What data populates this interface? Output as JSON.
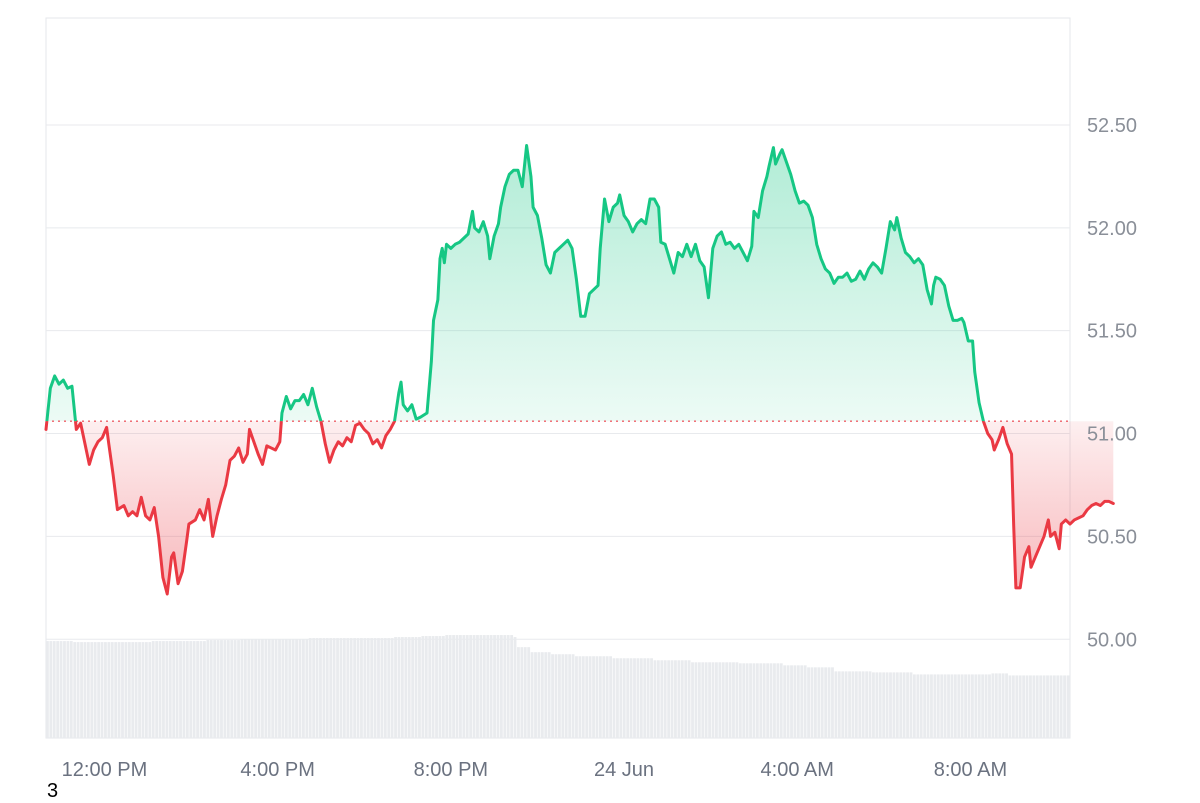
{
  "chart_data": {
    "type": "area",
    "baseline": 51.06,
    "ylim": [
      49.52,
      53.02
    ],
    "yticks": [
      "50.00",
      "50.50",
      "51.00",
      "51.50",
      "52.00",
      "52.50"
    ],
    "ytick_values": [
      50.0,
      50.5,
      51.0,
      51.5,
      52.0,
      52.5
    ],
    "xlim": [
      10.65,
      34.3
    ],
    "xticks": [
      {
        "label": "12:00 PM",
        "x": 12
      },
      {
        "label": "4:00 PM",
        "x": 16
      },
      {
        "label": "8:00 PM",
        "x": 20
      },
      {
        "label": "24 Jun",
        "x": 24
      },
      {
        "label": "4:00 AM",
        "x": 28
      },
      {
        "label": "8:00 AM",
        "x": 32
      }
    ],
    "xticks_unit": "hours since 00:00 on the first day",
    "series": [
      {
        "values": [
          [
            10.65,
            51.02
          ],
          [
            10.75,
            51.22
          ],
          [
            10.85,
            51.28
          ],
          [
            10.95,
            51.24
          ],
          [
            11.05,
            51.26
          ],
          [
            11.15,
            51.22
          ],
          [
            11.25,
            51.23
          ],
          [
            11.35,
            51.02
          ],
          [
            11.45,
            51.05
          ],
          [
            11.55,
            50.95
          ],
          [
            11.65,
            50.85
          ],
          [
            11.75,
            50.92
          ],
          [
            11.85,
            50.96
          ],
          [
            11.95,
            50.98
          ],
          [
            12.05,
            51.03
          ],
          [
            12.1,
            50.95
          ],
          [
            12.2,
            50.8
          ],
          [
            12.3,
            50.63
          ],
          [
            12.45,
            50.65
          ],
          [
            12.55,
            50.6
          ],
          [
            12.65,
            50.62
          ],
          [
            12.75,
            50.6
          ],
          [
            12.85,
            50.69
          ],
          [
            12.95,
            50.6
          ],
          [
            13.05,
            50.58
          ],
          [
            13.15,
            50.64
          ],
          [
            13.25,
            50.5
          ],
          [
            13.35,
            50.3
          ],
          [
            13.45,
            50.22
          ],
          [
            13.55,
            50.4
          ],
          [
            13.6,
            50.42
          ],
          [
            13.7,
            50.27
          ],
          [
            13.8,
            50.33
          ],
          [
            13.9,
            50.48
          ],
          [
            13.95,
            50.56
          ],
          [
            14.1,
            50.58
          ],
          [
            14.2,
            50.63
          ],
          [
            14.3,
            50.58
          ],
          [
            14.4,
            50.68
          ],
          [
            14.5,
            50.5
          ],
          [
            14.6,
            50.6
          ],
          [
            14.7,
            50.68
          ],
          [
            14.8,
            50.75
          ],
          [
            14.9,
            50.87
          ],
          [
            15.0,
            50.89
          ],
          [
            15.1,
            50.93
          ],
          [
            15.2,
            50.86
          ],
          [
            15.3,
            50.9
          ],
          [
            15.35,
            51.02
          ],
          [
            15.45,
            50.96
          ],
          [
            15.55,
            50.9
          ],
          [
            15.65,
            50.85
          ],
          [
            15.75,
            50.94
          ],
          [
            15.85,
            50.93
          ],
          [
            15.95,
            50.92
          ],
          [
            16.05,
            50.96
          ],
          [
            16.1,
            51.1
          ],
          [
            16.2,
            51.18
          ],
          [
            16.3,
            51.12
          ],
          [
            16.4,
            51.16
          ],
          [
            16.5,
            51.16
          ],
          [
            16.6,
            51.19
          ],
          [
            16.7,
            51.14
          ],
          [
            16.8,
            51.22
          ],
          [
            16.9,
            51.13
          ],
          [
            17.0,
            51.06
          ],
          [
            17.1,
            50.95
          ],
          [
            17.2,
            50.86
          ],
          [
            17.3,
            50.92
          ],
          [
            17.4,
            50.96
          ],
          [
            17.5,
            50.94
          ],
          [
            17.6,
            50.98
          ],
          [
            17.7,
            50.96
          ],
          [
            17.8,
            51.04
          ],
          [
            17.9,
            51.05
          ],
          [
            18.0,
            51.02
          ],
          [
            18.1,
            51.0
          ],
          [
            18.2,
            50.95
          ],
          [
            18.3,
            50.97
          ],
          [
            18.4,
            50.93
          ],
          [
            18.5,
            50.99
          ],
          [
            18.6,
            51.02
          ],
          [
            18.7,
            51.06
          ],
          [
            18.8,
            51.2
          ],
          [
            18.85,
            51.25
          ],
          [
            18.9,
            51.14
          ],
          [
            19.0,
            51.11
          ],
          [
            19.1,
            51.14
          ],
          [
            19.2,
            51.07
          ],
          [
            19.3,
            51.08
          ],
          [
            19.45,
            51.1
          ],
          [
            19.55,
            51.35
          ],
          [
            19.6,
            51.55
          ],
          [
            19.7,
            51.65
          ],
          [
            19.75,
            51.85
          ],
          [
            19.8,
            51.9
          ],
          [
            19.85,
            51.83
          ],
          [
            19.9,
            51.92
          ],
          [
            20.0,
            51.9
          ],
          [
            20.1,
            51.92
          ],
          [
            20.2,
            51.93
          ],
          [
            20.3,
            51.95
          ],
          [
            20.4,
            51.97
          ],
          [
            20.5,
            52.08
          ],
          [
            20.55,
            52.0
          ],
          [
            20.65,
            51.98
          ],
          [
            20.75,
            52.03
          ],
          [
            20.85,
            51.96
          ],
          [
            20.9,
            51.85
          ],
          [
            21.0,
            51.96
          ],
          [
            21.1,
            52.02
          ],
          [
            21.15,
            52.1
          ],
          [
            21.25,
            52.2
          ],
          [
            21.35,
            52.26
          ],
          [
            21.45,
            52.28
          ],
          [
            21.55,
            52.28
          ],
          [
            21.65,
            52.2
          ],
          [
            21.7,
            52.3
          ],
          [
            21.75,
            52.4
          ],
          [
            21.85,
            52.25
          ],
          [
            21.9,
            52.1
          ],
          [
            22.0,
            52.06
          ],
          [
            22.1,
            51.95
          ],
          [
            22.2,
            51.82
          ],
          [
            22.3,
            51.78
          ],
          [
            22.4,
            51.88
          ],
          [
            22.5,
            51.9
          ],
          [
            22.6,
            51.92
          ],
          [
            22.7,
            51.94
          ],
          [
            22.8,
            51.9
          ],
          [
            22.9,
            51.75
          ],
          [
            23.0,
            51.57
          ],
          [
            23.1,
            51.57
          ],
          [
            23.2,
            51.68
          ],
          [
            23.3,
            51.7
          ],
          [
            23.4,
            51.72
          ],
          [
            23.45,
            51.9
          ],
          [
            23.55,
            52.14
          ],
          [
            23.65,
            52.03
          ],
          [
            23.75,
            52.1
          ],
          [
            23.85,
            52.12
          ],
          [
            23.9,
            52.16
          ],
          [
            24.0,
            52.06
          ],
          [
            24.1,
            52.03
          ],
          [
            24.2,
            51.98
          ],
          [
            24.3,
            52.02
          ],
          [
            24.4,
            52.04
          ],
          [
            24.5,
            52.02
          ],
          [
            24.6,
            52.14
          ],
          [
            24.7,
            52.14
          ],
          [
            24.8,
            52.1
          ],
          [
            24.85,
            51.93
          ],
          [
            24.95,
            51.92
          ],
          [
            25.05,
            51.85
          ],
          [
            25.15,
            51.78
          ],
          [
            25.25,
            51.88
          ],
          [
            25.35,
            51.86
          ],
          [
            25.45,
            51.92
          ],
          [
            25.55,
            51.86
          ],
          [
            25.65,
            51.92
          ],
          [
            25.75,
            51.84
          ],
          [
            25.85,
            51.81
          ],
          [
            25.95,
            51.66
          ],
          [
            26.05,
            51.9
          ],
          [
            26.15,
            51.96
          ],
          [
            26.25,
            51.98
          ],
          [
            26.35,
            51.92
          ],
          [
            26.45,
            51.93
          ],
          [
            26.55,
            51.9
          ],
          [
            26.65,
            51.92
          ],
          [
            26.75,
            51.88
          ],
          [
            26.85,
            51.84
          ],
          [
            26.95,
            51.91
          ],
          [
            27.0,
            52.08
          ],
          [
            27.1,
            52.05
          ],
          [
            27.2,
            52.18
          ],
          [
            27.3,
            52.25
          ],
          [
            27.35,
            52.3
          ],
          [
            27.45,
            52.39
          ],
          [
            27.5,
            52.31
          ],
          [
            27.6,
            52.36
          ],
          [
            27.65,
            52.38
          ],
          [
            27.75,
            52.32
          ],
          [
            27.85,
            52.26
          ],
          [
            27.95,
            52.18
          ],
          [
            28.05,
            52.12
          ],
          [
            28.15,
            52.13
          ],
          [
            28.25,
            52.11
          ],
          [
            28.35,
            52.05
          ],
          [
            28.45,
            51.92
          ],
          [
            28.55,
            51.85
          ],
          [
            28.65,
            51.8
          ],
          [
            28.75,
            51.78
          ],
          [
            28.85,
            51.73
          ],
          [
            28.95,
            51.76
          ],
          [
            29.05,
            51.76
          ],
          [
            29.15,
            51.78
          ],
          [
            29.25,
            51.74
          ],
          [
            29.35,
            51.75
          ],
          [
            29.45,
            51.79
          ],
          [
            29.55,
            51.75
          ],
          [
            29.65,
            51.8
          ],
          [
            29.75,
            51.83
          ],
          [
            29.85,
            51.81
          ],
          [
            29.95,
            51.78
          ],
          [
            30.05,
            51.9
          ],
          [
            30.15,
            52.03
          ],
          [
            30.25,
            51.99
          ],
          [
            30.3,
            52.05
          ],
          [
            30.4,
            51.95
          ],
          [
            30.5,
            51.88
          ],
          [
            30.6,
            51.86
          ],
          [
            30.7,
            51.83
          ],
          [
            30.8,
            51.85
          ],
          [
            30.9,
            51.82
          ],
          [
            31.0,
            51.7
          ],
          [
            31.1,
            51.63
          ],
          [
            31.15,
            51.72
          ],
          [
            31.2,
            51.76
          ],
          [
            31.3,
            51.75
          ],
          [
            31.4,
            51.72
          ],
          [
            31.5,
            51.62
          ],
          [
            31.6,
            51.55
          ],
          [
            31.7,
            51.55
          ],
          [
            31.8,
            51.56
          ],
          [
            31.85,
            51.54
          ],
          [
            31.95,
            51.45
          ],
          [
            32.0,
            51.45
          ],
          [
            32.05,
            51.45
          ],
          [
            32.1,
            51.3
          ],
          [
            32.2,
            51.15
          ],
          [
            32.3,
            51.06
          ],
          [
            32.4,
            51.0
          ],
          [
            32.5,
            50.97
          ],
          [
            32.55,
            50.92
          ],
          [
            32.65,
            50.97
          ],
          [
            32.75,
            51.03
          ],
          [
            32.85,
            50.95
          ],
          [
            32.95,
            50.9
          ],
          [
            33.0,
            50.55
          ],
          [
            33.05,
            50.25
          ],
          [
            33.15,
            50.25
          ],
          [
            33.25,
            50.4
          ],
          [
            33.35,
            50.45
          ],
          [
            33.4,
            50.35
          ],
          [
            33.5,
            50.4
          ],
          [
            33.6,
            50.45
          ],
          [
            33.7,
            50.5
          ],
          [
            33.8,
            50.58
          ],
          [
            33.85,
            50.5
          ],
          [
            33.95,
            50.52
          ],
          [
            34.05,
            50.44
          ],
          [
            34.1,
            50.56
          ],
          [
            34.2,
            50.58
          ],
          [
            34.3,
            50.56
          ],
          [
            34.4,
            50.58
          ],
          [
            34.5,
            50.59
          ],
          [
            34.6,
            50.6
          ],
          [
            34.7,
            50.63
          ],
          [
            34.8,
            50.65
          ],
          [
            34.9,
            50.66
          ],
          [
            35.0,
            50.65
          ],
          [
            35.1,
            50.67
          ],
          [
            35.2,
            50.67
          ],
          [
            35.3,
            50.66
          ]
        ]
      }
    ],
    "volume": {
      "type": "bar",
      "values": [
        [
          10.65,
          0.96
        ],
        [
          11.3,
          0.95
        ],
        [
          13.2,
          0.96
        ],
        [
          14.5,
          0.97
        ],
        [
          15.3,
          0.98
        ],
        [
          17.0,
          0.99
        ],
        [
          18.2,
          0.99
        ],
        [
          19.0,
          1.0
        ],
        [
          19.7,
          1.01
        ],
        [
          20.3,
          1.02
        ],
        [
          21.2,
          1.02
        ],
        [
          21.9,
          1.0
        ],
        [
          22.0,
          0.9
        ],
        [
          22.3,
          0.85
        ],
        [
          22.8,
          0.83
        ],
        [
          23.4,
          0.81
        ],
        [
          24.3,
          0.79
        ],
        [
          25.3,
          0.77
        ],
        [
          26.2,
          0.75
        ],
        [
          27.3,
          0.74
        ],
        [
          28.4,
          0.72
        ],
        [
          29.0,
          0.7
        ],
        [
          29.6,
          0.66
        ],
        [
          30.5,
          0.65
        ],
        [
          31.5,
          0.63
        ],
        [
          33.0,
          0.63
        ],
        [
          33.4,
          0.64
        ],
        [
          33.8,
          0.62
        ],
        [
          35.3,
          0.61
        ]
      ],
      "max": 1.05
    },
    "colors": {
      "up_line": "#16c784",
      "down_line": "#ea3943",
      "up_fill_top": "#16c784",
      "down_fill_bottom": "#ea3943",
      "baseline": "#ea3943",
      "grid": "#e8eaed",
      "volume": "#e9ebee"
    },
    "grid": true
  },
  "footer": {
    "note": "3"
  }
}
